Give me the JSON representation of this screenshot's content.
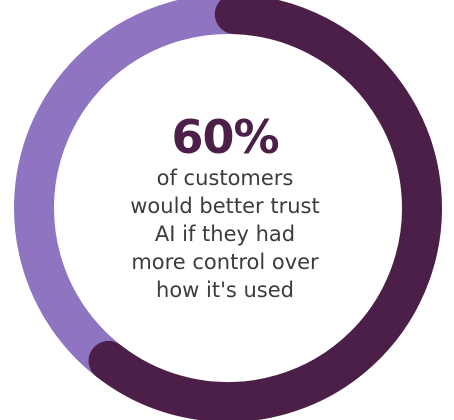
{
  "chart_data": {
    "type": "pie",
    "donut": true,
    "categories": [
      "",
      ""
    ],
    "values": [
      60,
      40
    ],
    "colors": [
      "#4b1f47",
      "#8f74c2"
    ],
    "center_value_label": "60%",
    "center_caption": "of customers\nwould better trust\nAI if they had\nmore control over\nhow it's used"
  }
}
